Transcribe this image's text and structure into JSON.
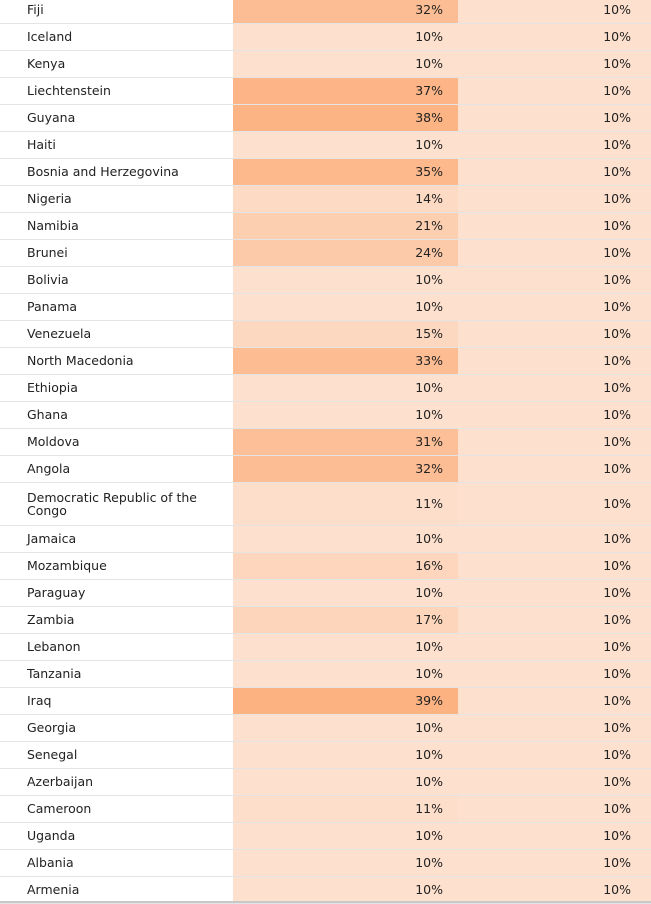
{
  "rows": [
    {
      "country": "Fiji",
      "rate_a": "32%",
      "rate_b": "10%",
      "shade_a": 0.32
    },
    {
      "country": "Iceland",
      "rate_a": "10%",
      "rate_b": "10%",
      "shade_a": 0.1
    },
    {
      "country": "Kenya",
      "rate_a": "10%",
      "rate_b": "10%",
      "shade_a": 0.1
    },
    {
      "country": "Liechtenstein",
      "rate_a": "37%",
      "rate_b": "10%",
      "shade_a": 0.37
    },
    {
      "country": "Guyana",
      "rate_a": "38%",
      "rate_b": "10%",
      "shade_a": 0.38
    },
    {
      "country": "Haiti",
      "rate_a": "10%",
      "rate_b": "10%",
      "shade_a": 0.1
    },
    {
      "country": "Bosnia and Herzegovina",
      "rate_a": "35%",
      "rate_b": "10%",
      "shade_a": 0.35
    },
    {
      "country": "Nigeria",
      "rate_a": "14%",
      "rate_b": "10%",
      "shade_a": 0.14
    },
    {
      "country": "Namibia",
      "rate_a": "21%",
      "rate_b": "10%",
      "shade_a": 0.21
    },
    {
      "country": "Brunei",
      "rate_a": "24%",
      "rate_b": "10%",
      "shade_a": 0.24
    },
    {
      "country": "Bolivia",
      "rate_a": "10%",
      "rate_b": "10%",
      "shade_a": 0.1
    },
    {
      "country": "Panama",
      "rate_a": "10%",
      "rate_b": "10%",
      "shade_a": 0.1
    },
    {
      "country": "Venezuela",
      "rate_a": "15%",
      "rate_b": "10%",
      "shade_a": 0.15
    },
    {
      "country": "North Macedonia",
      "rate_a": "33%",
      "rate_b": "10%",
      "shade_a": 0.33
    },
    {
      "country": "Ethiopia",
      "rate_a": "10%",
      "rate_b": "10%",
      "shade_a": 0.1
    },
    {
      "country": "Ghana",
      "rate_a": "10%",
      "rate_b": "10%",
      "shade_a": 0.1
    },
    {
      "country": "Moldova",
      "rate_a": "31%",
      "rate_b": "10%",
      "shade_a": 0.31
    },
    {
      "country": "Angola",
      "rate_a": "32%",
      "rate_b": "10%",
      "shade_a": 0.32
    },
    {
      "country": "Democratic Republic of the Congo",
      "rate_a": "11%",
      "rate_b": "10%",
      "shade_a": 0.11
    },
    {
      "country": "Jamaica",
      "rate_a": "10%",
      "rate_b": "10%",
      "shade_a": 0.1
    },
    {
      "country": "Mozambique",
      "rate_a": "16%",
      "rate_b": "10%",
      "shade_a": 0.16
    },
    {
      "country": "Paraguay",
      "rate_a": "10%",
      "rate_b": "10%",
      "shade_a": 0.1
    },
    {
      "country": "Zambia",
      "rate_a": "17%",
      "rate_b": "10%",
      "shade_a": 0.17
    },
    {
      "country": "Lebanon",
      "rate_a": "10%",
      "rate_b": "10%",
      "shade_a": 0.1
    },
    {
      "country": "Tanzania",
      "rate_a": "10%",
      "rate_b": "10%",
      "shade_a": 0.1
    },
    {
      "country": "Iraq",
      "rate_a": "39%",
      "rate_b": "10%",
      "shade_a": 0.39
    },
    {
      "country": "Georgia",
      "rate_a": "10%",
      "rate_b": "10%",
      "shade_a": 0.1
    },
    {
      "country": "Senegal",
      "rate_a": "10%",
      "rate_b": "10%",
      "shade_a": 0.1
    },
    {
      "country": "Azerbaijan",
      "rate_a": "10%",
      "rate_b": "10%",
      "shade_a": 0.1
    },
    {
      "country": "Cameroon",
      "rate_a": "11%",
      "rate_b": "10%",
      "shade_a": 0.11
    },
    {
      "country": "Uganda",
      "rate_a": "10%",
      "rate_b": "10%",
      "shade_a": 0.1
    },
    {
      "country": "Albania",
      "rate_a": "10%",
      "rate_b": "10%",
      "shade_a": 0.1
    },
    {
      "country": "Armenia",
      "rate_a": "10%",
      "rate_b": "10%",
      "shade_a": 0.1
    }
  ],
  "colors": {
    "cell_light": "#fde0cd",
    "cell_dark": "#fdb282"
  }
}
